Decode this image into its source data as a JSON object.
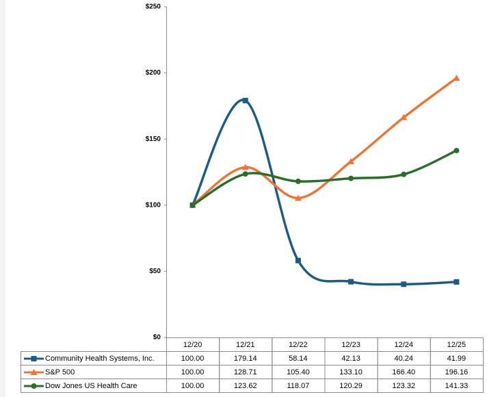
{
  "chart_data": {
    "type": "line",
    "categories": [
      "12/20",
      "12/21",
      "12/22",
      "12/23",
      "12/24",
      "12/25"
    ],
    "series": [
      {
        "name": "Community Health Systems, Inc.",
        "color": "#1f5c82",
        "marker": "square",
        "values": [
          100,
          179.14,
          58.14,
          42.13,
          40.24,
          41.99
        ],
        "value_labels": [
          "100.00",
          "179.14",
          "58.14",
          "42.13",
          "40.24",
          "41.99"
        ]
      },
      {
        "name": "S&P 500",
        "color": "#e8773a",
        "marker": "triangle",
        "values": [
          100,
          128.71,
          105.4,
          133.1,
          166.4,
          196.16
        ],
        "value_labels": [
          "100.00",
          "128.71",
          "105.40",
          "133.10",
          "166.40",
          "196.16"
        ]
      },
      {
        "name": "Dow Jones US Health Care",
        "color": "#2b6e2b",
        "marker": "circle",
        "values": [
          100,
          123.62,
          118.07,
          120.29,
          123.32,
          141.33
        ],
        "value_labels": [
          "100.00",
          "123.62",
          "118.07",
          "120.29",
          "123.32",
          "141.33"
        ]
      }
    ],
    "ylim": [
      0,
      250
    ],
    "yticks": [
      {
        "value": 0,
        "label": "$0"
      },
      {
        "value": 50,
        "label": "$50"
      },
      {
        "value": 100,
        "label": "$100"
      },
      {
        "value": 150,
        "label": "$150"
      },
      {
        "value": 200,
        "label": "$200"
      },
      {
        "value": 250,
        "label": "$250"
      }
    ],
    "smooth": true
  }
}
